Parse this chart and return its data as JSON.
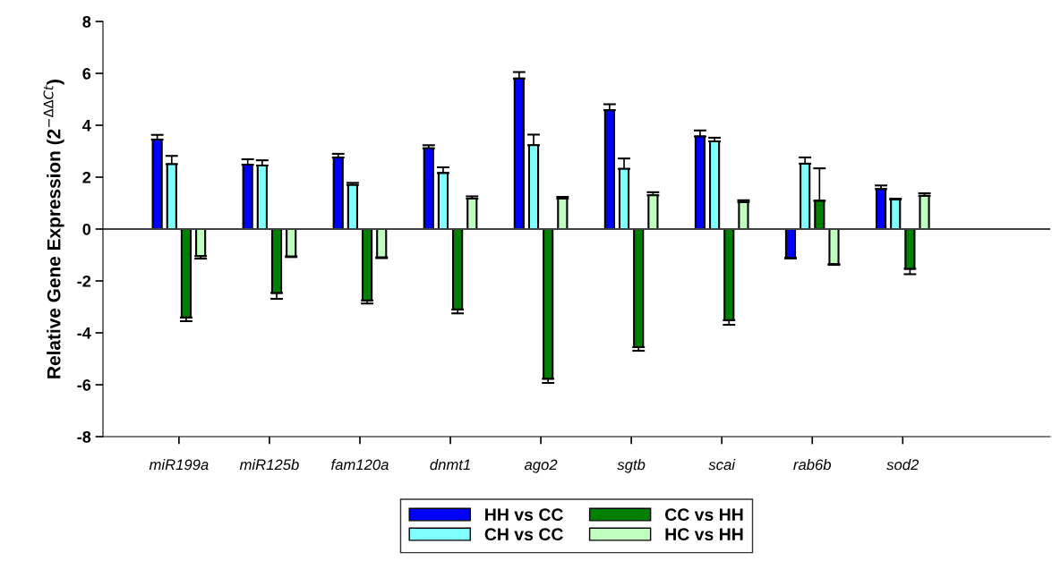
{
  "chart_data": {
    "type": "bar",
    "ylabel": "Relative Gene Expression (2$^{−ΔΔCt}$)",
    "categories": [
      "miR199a",
      "miR125b",
      "fam120a",
      "dnmt1",
      "ago2",
      "sgtb",
      "scai",
      "rab6b",
      "sod2"
    ],
    "series": [
      {
        "name": "HH vs CC",
        "color": "#0000ff",
        "values": [
          3.45,
          2.48,
          2.76,
          3.11,
          5.8,
          4.58,
          3.57,
          -1.11,
          1.54
        ],
        "errors": [
          [
            3.45,
            3.63
          ],
          [
            2.48,
            2.69
          ],
          [
            2.76,
            2.9
          ],
          [
            3.11,
            3.23
          ],
          [
            5.8,
            6.05
          ],
          [
            4.58,
            4.81
          ],
          [
            3.57,
            3.8
          ],
          [
            -1.13,
            -1.11
          ],
          [
            1.54,
            1.68
          ]
        ]
      },
      {
        "name": "CH vs CC",
        "color": "#80ffff",
        "values": [
          2.5,
          2.45,
          1.7,
          2.16,
          3.23,
          2.32,
          3.38,
          2.52,
          1.14
        ],
        "errors": [
          [
            2.5,
            2.82
          ],
          [
            2.45,
            2.65
          ],
          [
            1.7,
            1.78
          ],
          [
            2.16,
            2.38
          ],
          [
            3.23,
            3.64
          ],
          [
            2.32,
            2.72
          ],
          [
            3.38,
            3.52
          ],
          [
            2.52,
            2.76
          ],
          [
            1.14,
            1.17
          ]
        ]
      },
      {
        "name": "CC vs HH",
        "color": "#008000",
        "values": [
          -3.41,
          -2.46,
          -2.75,
          -3.1,
          -5.77,
          -4.55,
          -3.51,
          1.09,
          -1.53
        ],
        "errors": [
          [
            -3.55,
            -3.41
          ],
          [
            -2.69,
            -2.46
          ],
          [
            -2.87,
            -2.75
          ],
          [
            -3.25,
            -3.1
          ],
          [
            -5.93,
            -5.77
          ],
          [
            -4.69,
            -4.55
          ],
          [
            -3.69,
            -3.51
          ],
          [
            1.09,
            2.34
          ],
          [
            -1.74,
            -1.53
          ]
        ]
      },
      {
        "name": "HC vs HH",
        "color": "#c0ffc0",
        "values": [
          -1.04,
          -1.05,
          -1.09,
          1.17,
          1.17,
          1.3,
          1.04,
          -1.35,
          1.28
        ],
        "errors": [
          [
            -1.14,
            -1.04
          ],
          [
            -1.08,
            -1.05
          ],
          [
            -1.12,
            -1.09
          ],
          [
            1.17,
            1.26
          ],
          [
            1.17,
            1.24
          ],
          [
            1.3,
            1.42
          ],
          [
            1.04,
            1.11
          ],
          [
            -1.38,
            -1.35
          ],
          [
            1.28,
            1.38
          ]
        ]
      }
    ],
    "ylim": [
      -8,
      8
    ],
    "yticks": [
      -8,
      -6,
      -4,
      -2,
      0,
      2,
      4,
      6,
      8
    ],
    "ref_lines": [
      {
        "axis": "y",
        "value": 0,
        "color": "#404040"
      }
    ],
    "grid": false,
    "legend": "bottom"
  }
}
